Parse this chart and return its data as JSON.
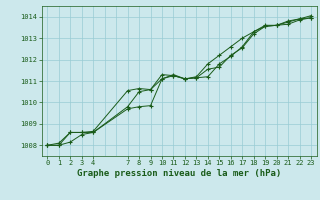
{
  "title": "Graphe pression niveau de la mer (hPa)",
  "background_color": "#cce8ec",
  "grid_color": "#99ccd4",
  "line_color": "#1a5c1a",
  "xlim": [
    -0.5,
    23.5
  ],
  "ylim": [
    1007.5,
    1014.5
  ],
  "x_ticks": [
    0,
    1,
    2,
    3,
    4,
    7,
    8,
    9,
    10,
    11,
    12,
    13,
    14,
    15,
    16,
    17,
    18,
    19,
    20,
    21,
    22,
    23
  ],
  "x_grid_lines": [
    0,
    1,
    2,
    3,
    4,
    5,
    6,
    7,
    8,
    9,
    10,
    11,
    12,
    13,
    14,
    15,
    16,
    17,
    18,
    19,
    20,
    21,
    22,
    23
  ],
  "y_ticks": [
    1008,
    1009,
    1010,
    1011,
    1012,
    1013,
    1014
  ],
  "line1_x": [
    0,
    1,
    2,
    3,
    4,
    7,
    8,
    9,
    10,
    11,
    12,
    13,
    14,
    15,
    16,
    17,
    18,
    19,
    20,
    21,
    22,
    23
  ],
  "line1_y": [
    1008.0,
    1008.0,
    1008.6,
    1008.6,
    1008.6,
    1009.7,
    1009.8,
    1009.85,
    1011.1,
    1011.25,
    1011.1,
    1011.15,
    1011.55,
    1011.65,
    1012.2,
    1012.55,
    1013.2,
    1013.55,
    1013.6,
    1013.65,
    1013.85,
    1013.95
  ],
  "line2_x": [
    0,
    1,
    2,
    3,
    4,
    7,
    8,
    9,
    10,
    11,
    12,
    13,
    14,
    15,
    16,
    17,
    18,
    19,
    20,
    21,
    22,
    23
  ],
  "line2_y": [
    1008.0,
    1008.0,
    1008.15,
    1008.5,
    1008.6,
    1009.8,
    1010.5,
    1010.6,
    1011.3,
    1011.25,
    1011.1,
    1011.15,
    1011.2,
    1011.8,
    1012.15,
    1012.6,
    1013.3,
    1013.6,
    1013.6,
    1013.8,
    1013.9,
    1013.95
  ],
  "line3_x": [
    0,
    1,
    2,
    3,
    4,
    7,
    8,
    9,
    10,
    11,
    12,
    13,
    14,
    15,
    16,
    17,
    18,
    19,
    20,
    21,
    22,
    23
  ],
  "line3_y": [
    1008.0,
    1008.1,
    1008.6,
    1008.6,
    1008.65,
    1010.55,
    1010.65,
    1010.6,
    1011.1,
    1011.3,
    1011.1,
    1011.2,
    1011.8,
    1012.2,
    1012.6,
    1013.0,
    1013.3,
    1013.55,
    1013.6,
    1013.75,
    1013.9,
    1014.05
  ],
  "tick_fontsize": 5,
  "title_fontsize": 6.5,
  "line_width": 0.7,
  "marker_size": 3.0
}
